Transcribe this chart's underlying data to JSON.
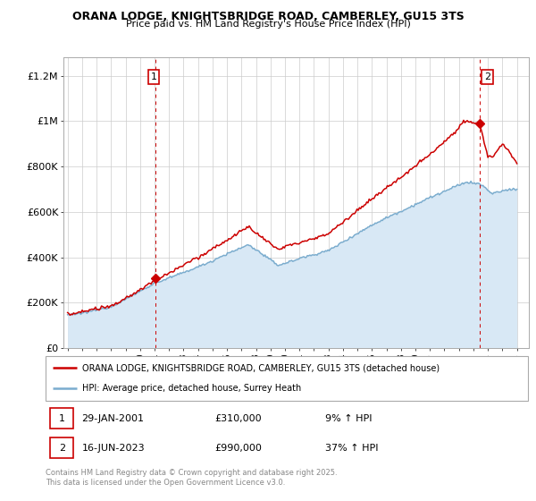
{
  "title1": "ORANA LODGE, KNIGHTSBRIDGE ROAD, CAMBERLEY, GU15 3TS",
  "title2": "Price paid vs. HM Land Registry's House Price Index (HPI)",
  "ylabel_ticks": [
    "£0",
    "£200K",
    "£400K",
    "£600K",
    "£800K",
    "£1M",
    "£1.2M"
  ],
  "ytick_values": [
    0,
    200000,
    400000,
    600000,
    800000,
    1000000,
    1200000
  ],
  "ylim": [
    0,
    1280000
  ],
  "xlim_start": 1994.7,
  "xlim_end": 2026.8,
  "legend_line1": "ORANA LODGE, KNIGHTSBRIDGE ROAD, CAMBERLEY, GU15 3TS (detached house)",
  "legend_line2": "HPI: Average price, detached house, Surrey Heath",
  "sale1_label": "1",
  "sale1_date": "29-JAN-2001",
  "sale1_price": "£310,000",
  "sale1_pct": "9% ↑ HPI",
  "sale2_label": "2",
  "sale2_date": "16-JUN-2023",
  "sale2_price": "£990,000",
  "sale2_pct": "37% ↑ HPI",
  "footnote": "Contains HM Land Registry data © Crown copyright and database right 2025.\nThis data is licensed under the Open Government Licence v3.0.",
  "red_color": "#cc0000",
  "blue_color": "#7aacce",
  "sale1_x": 2001.08,
  "sale1_y": 310000,
  "sale2_x": 2023.46,
  "sale2_y": 990000,
  "hpi_fill_color": "#d8e8f5",
  "background_color": "#ffffff",
  "grid_color": "#cccccc"
}
